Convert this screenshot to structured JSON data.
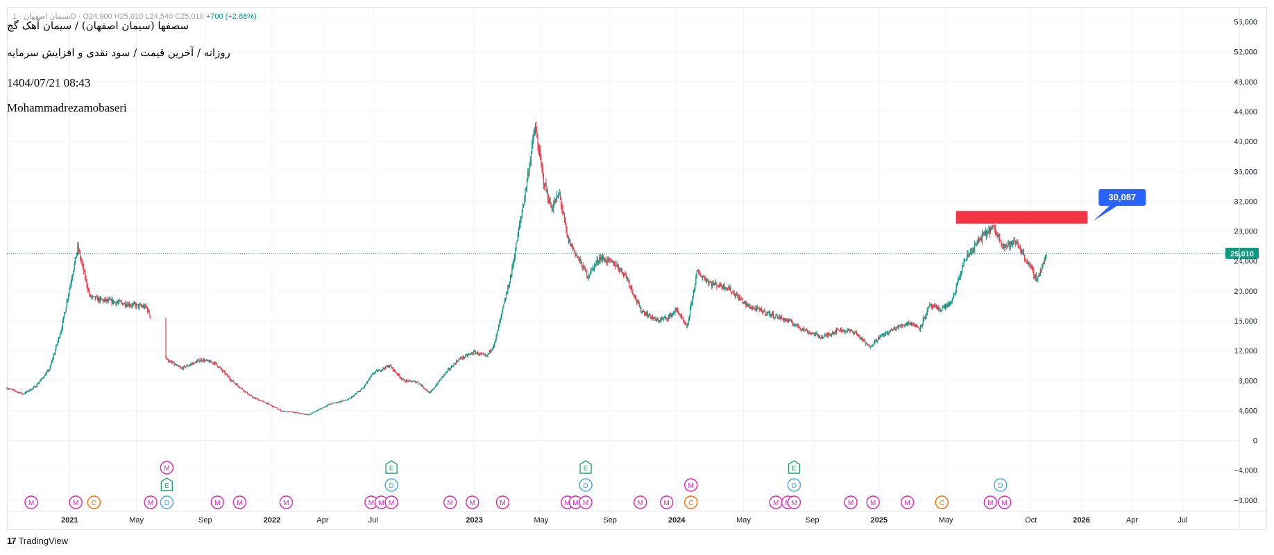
{
  "header": {
    "ohlc_text": "سیمان اصفهان · 1D · O24,900 H25,010 L24,540 C25,010",
    "change_text": "+700 (+2.88%)",
    "title_line1": "سصفها (سیمان اصفهان) / سیمان آهک گچ",
    "title_line2": "روزانه / آخرین قیمت / سود نقدی و افزایش سرمایه",
    "datetime": "1404/07/21 08:43",
    "author": "Mohammadrezamobaseri"
  },
  "branding": {
    "name": "TradingView"
  },
  "colors": {
    "up": "#089981",
    "down": "#f23645",
    "resistance_zone": "#f23645",
    "target_label_bg": "#2962ff",
    "price_label_bg": "#089981",
    "event_m": "#e91eb6",
    "event_c": "#ff6d00",
    "event_d": "#42a5f5",
    "event_e": "#26a269",
    "grid": "#f0f3fa"
  },
  "chart_data": {
    "type": "candlestick",
    "y_axis_ticks": [
      "56,000",
      "52,000",
      "48,000",
      "44,000",
      "40,000",
      "36,000",
      "32,000",
      "28,000",
      "24,000",
      "20,000",
      "16,000",
      "12,000",
      "8,000",
      "4,000",
      "0",
      "−4,000",
      "−8,000"
    ],
    "y_tick_values": [
      56000,
      52000,
      48000,
      44000,
      40000,
      36000,
      32000,
      28000,
      24000,
      20000,
      16000,
      12000,
      8000,
      4000,
      0,
      -4000,
      -8000
    ],
    "ylim": [
      -9500,
      58000
    ],
    "x_axis_labels": [
      {
        "label": "2021",
        "t": 2021.0,
        "bold": true
      },
      {
        "label": "May",
        "t": 2021.33,
        "bold": false
      },
      {
        "label": "Sep",
        "t": 2021.67,
        "bold": false
      },
      {
        "label": "2022",
        "t": 2022.0,
        "bold": true
      },
      {
        "label": "Apr",
        "t": 2022.25,
        "bold": false
      },
      {
        "label": "Jul",
        "t": 2022.5,
        "bold": false
      },
      {
        "label": "2023",
        "t": 2023.0,
        "bold": true
      },
      {
        "label": "May",
        "t": 2023.33,
        "bold": false
      },
      {
        "label": "Sep",
        "t": 2023.67,
        "bold": false
      },
      {
        "label": "2024",
        "t": 2024.0,
        "bold": true
      },
      {
        "label": "May",
        "t": 2024.33,
        "bold": false
      },
      {
        "label": "Sep",
        "t": 2024.67,
        "bold": false
      },
      {
        "label": "2025",
        "t": 2025.0,
        "bold": true
      },
      {
        "label": "May",
        "t": 2025.33,
        "bold": false
      },
      {
        "label": "Oct",
        "t": 2025.75,
        "bold": false
      },
      {
        "label": "2026",
        "t": 2026.0,
        "bold": true
      },
      {
        "label": "Apr",
        "t": 2026.25,
        "bold": false
      },
      {
        "label": "Jul",
        "t": 2026.5,
        "bold": false
      }
    ],
    "xlim": [
      2020.69,
      2026.78
    ],
    "last_price": 25010,
    "last_price_label": "25,010",
    "target_price_label": "30,087",
    "resistance_zone": {
      "t_start": 2025.38,
      "t_end": 2026.03,
      "y_low": 29000,
      "y_high": 30087
    },
    "price_path": [
      [
        2020.69,
        7000
      ],
      [
        2020.77,
        6200
      ],
      [
        2020.83,
        7200
      ],
      [
        2020.9,
        9500
      ],
      [
        2020.96,
        15000
      ],
      [
        2021.0,
        20500
      ],
      [
        2021.04,
        25800
      ],
      [
        2021.07,
        22500
      ],
      [
        2021.1,
        19200
      ],
      [
        2021.15,
        18800
      ],
      [
        2021.25,
        18400
      ],
      [
        2021.38,
        17800
      ],
      [
        2021.48,
        10800
      ],
      [
        2021.55,
        9600
      ],
      [
        2021.65,
        10800
      ],
      [
        2021.72,
        10300
      ],
      [
        2021.8,
        8000
      ],
      [
        2021.9,
        5800
      ],
      [
        2021.97,
        5000
      ],
      [
        2022.05,
        3900
      ],
      [
        2022.12,
        3700
      ],
      [
        2022.18,
        3400
      ],
      [
        2022.28,
        4800
      ],
      [
        2022.38,
        5500
      ],
      [
        2022.45,
        7000
      ],
      [
        2022.5,
        9000
      ],
      [
        2022.58,
        10000
      ],
      [
        2022.65,
        8000
      ],
      [
        2022.72,
        7800
      ],
      [
        2022.78,
        6300
      ],
      [
        2022.85,
        8800
      ],
      [
        2022.92,
        10800
      ],
      [
        2023.0,
        11800
      ],
      [
        2023.06,
        11200
      ],
      [
        2023.1,
        13000
      ],
      [
        2023.18,
        22000
      ],
      [
        2023.25,
        33000
      ],
      [
        2023.3,
        42000
      ],
      [
        2023.34,
        35000
      ],
      [
        2023.38,
        31000
      ],
      [
        2023.42,
        33000
      ],
      [
        2023.46,
        27000
      ],
      [
        2023.52,
        24000
      ],
      [
        2023.56,
        22000
      ],
      [
        2023.62,
        24500
      ],
      [
        2023.7,
        23500
      ],
      [
        2023.75,
        22000
      ],
      [
        2023.82,
        17500
      ],
      [
        2023.9,
        16000
      ],
      [
        2023.96,
        16500
      ],
      [
        2024.0,
        17500
      ],
      [
        2024.05,
        15000
      ],
      [
        2024.1,
        22500
      ],
      [
        2024.17,
        21000
      ],
      [
        2024.25,
        20500
      ],
      [
        2024.35,
        18000
      ],
      [
        2024.45,
        17000
      ],
      [
        2024.55,
        16000
      ],
      [
        2024.65,
        14500
      ],
      [
        2024.72,
        13800
      ],
      [
        2024.8,
        14800
      ],
      [
        2024.88,
        14500
      ],
      [
        2024.95,
        12500
      ],
      [
        2025.0,
        13800
      ],
      [
        2025.08,
        15000
      ],
      [
        2025.15,
        15800
      ],
      [
        2025.2,
        15000
      ],
      [
        2025.25,
        18000
      ],
      [
        2025.3,
        17500
      ],
      [
        2025.36,
        18500
      ],
      [
        2025.42,
        24000
      ],
      [
        2025.5,
        27000
      ],
      [
        2025.56,
        28500
      ],
      [
        2025.62,
        26000
      ],
      [
        2025.68,
        26500
      ],
      [
        2025.73,
        24000
      ],
      [
        2025.78,
        21500
      ],
      [
        2025.83,
        25010
      ]
    ],
    "events": [
      {
        "t": 2020.81,
        "row": 0,
        "letter": "M"
      },
      {
        "t": 2021.03,
        "row": 0,
        "letter": "M"
      },
      {
        "t": 2021.12,
        "row": 0,
        "letter": "C"
      },
      {
        "t": 2021.4,
        "row": 0,
        "letter": "M"
      },
      {
        "t": 2021.48,
        "row": 0,
        "letter": "D"
      },
      {
        "t": 2021.48,
        "row": 1,
        "letter": "E"
      },
      {
        "t": 2021.48,
        "row": 2,
        "letter": "M"
      },
      {
        "t": 2021.73,
        "row": 0,
        "letter": "M"
      },
      {
        "t": 2021.84,
        "row": 0,
        "letter": "M"
      },
      {
        "t": 2022.07,
        "row": 0,
        "letter": "M"
      },
      {
        "t": 2022.49,
        "row": 0,
        "letter": "M"
      },
      {
        "t": 2022.54,
        "row": 0,
        "letter": "M"
      },
      {
        "t": 2022.59,
        "row": 0,
        "letter": "M"
      },
      {
        "t": 2022.59,
        "row": 1,
        "letter": "D"
      },
      {
        "t": 2022.59,
        "row": 2,
        "letter": "E"
      },
      {
        "t": 2022.88,
        "row": 0,
        "letter": "M"
      },
      {
        "t": 2022.99,
        "row": 0,
        "letter": "M"
      },
      {
        "t": 2023.14,
        "row": 0,
        "letter": "M"
      },
      {
        "t": 2023.46,
        "row": 0,
        "letter": "M"
      },
      {
        "t": 2023.5,
        "row": 0,
        "letter": "M"
      },
      {
        "t": 2023.55,
        "row": 0,
        "letter": "M"
      },
      {
        "t": 2023.55,
        "row": 1,
        "letter": "D"
      },
      {
        "t": 2023.55,
        "row": 2,
        "letter": "E"
      },
      {
        "t": 2023.82,
        "row": 0,
        "letter": "M"
      },
      {
        "t": 2023.95,
        "row": 0,
        "letter": "M"
      },
      {
        "t": 2024.07,
        "row": 0,
        "letter": "C"
      },
      {
        "t": 2024.07,
        "row": 1,
        "letter": "M"
      },
      {
        "t": 2024.49,
        "row": 0,
        "letter": "M"
      },
      {
        "t": 2024.55,
        "row": 0,
        "letter": "M"
      },
      {
        "t": 2024.58,
        "row": 0,
        "letter": "M"
      },
      {
        "t": 2024.58,
        "row": 1,
        "letter": "D"
      },
      {
        "t": 2024.58,
        "row": 2,
        "letter": "E"
      },
      {
        "t": 2024.86,
        "row": 0,
        "letter": "M"
      },
      {
        "t": 2024.97,
        "row": 0,
        "letter": "M"
      },
      {
        "t": 2025.14,
        "row": 0,
        "letter": "M"
      },
      {
        "t": 2025.31,
        "row": 0,
        "letter": "C"
      },
      {
        "t": 2025.55,
        "row": 0,
        "letter": "M"
      },
      {
        "t": 2025.62,
        "row": 0,
        "letter": "M"
      },
      {
        "t": 2025.6,
        "row": 1,
        "letter": "D"
      }
    ]
  }
}
